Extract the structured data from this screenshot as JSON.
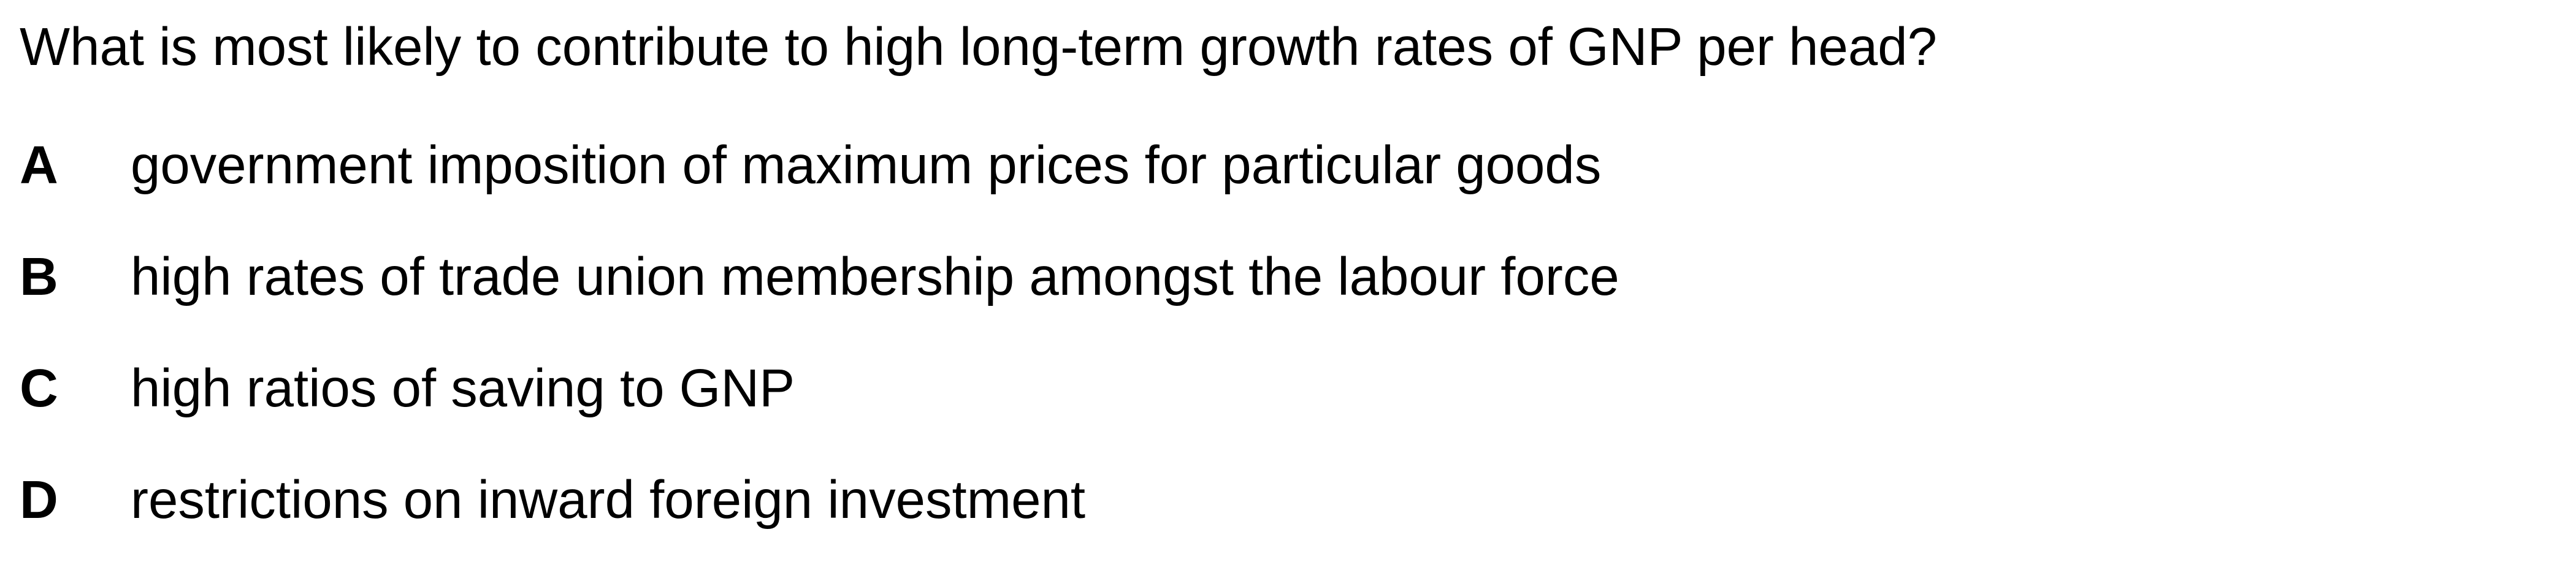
{
  "question": {
    "text": "What is most likely to contribute to high long-term growth rates of GNP per head?"
  },
  "options": [
    {
      "letter": "A",
      "text": "government imposition of maximum prices for particular goods"
    },
    {
      "letter": "B",
      "text": "high rates of trade union membership amongst the labour force"
    },
    {
      "letter": "C",
      "text": "high ratios of saving to GNP"
    },
    {
      "letter": "D",
      "text": "restrictions on inward foreign investment"
    }
  ]
}
